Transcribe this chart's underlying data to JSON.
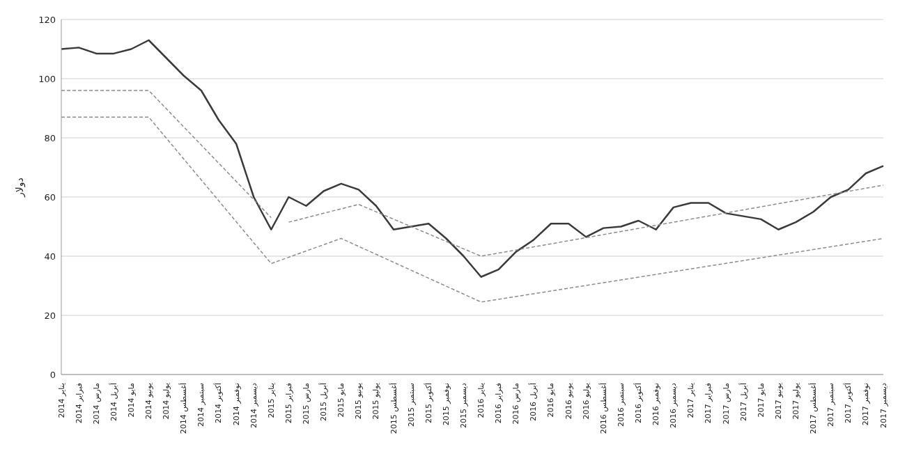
{
  "chart_data": {
    "type": "line",
    "ylabel": "دولار",
    "categories": [
      "يناير 2014",
      "فبراير 2014",
      "مارس 2014",
      "أبريل 2014",
      "مايو 2014",
      "يونيو 2014",
      "يوليو 2014",
      "أغسطس 2014",
      "سبتمبر 2014",
      "أكتوبر 2014",
      "نوفمبر 2014",
      "ديسمبر 2014",
      "يناير 2015",
      "فبراير 2015",
      "مارس 2015",
      "أبريل 2015",
      "مايو 2015",
      "يونيو 2015",
      "يوليو 2015",
      "أغسطس 2015",
      "سبتمبر 2015",
      "أكتوبر 2015",
      "نوفمبر 2015",
      "ديسمبر 2015",
      "يناير 2016",
      "فبراير 2016",
      "مارس 2016",
      "أبريل 2016",
      "مايو 2016",
      "يونيو 2016",
      "يوليو 2016",
      "أغسطس 2016",
      "سبتمبر 2016",
      "أكتوبر 2016",
      "نوفمبر 2016",
      "ديسمبر 2016",
      "يناير 2017",
      "فبراير 2017",
      "مارس 2017",
      "أبريل 2017",
      "مايو 2017",
      "يونيو 2017",
      "يوليو 2017",
      "أغسطس 2017",
      "سبتمبر 2017",
      "أكتوبر 2017",
      "نوفمبر 2017",
      "ديسمبر 2017"
    ],
    "series": [
      {
        "color": "#3a3a3a",
        "line_style": "solid",
        "values": [
          110,
          110.5,
          108.5,
          108.5,
          110,
          113,
          107,
          101,
          96,
          86,
          78,
          60,
          49,
          60,
          57,
          62,
          64.5,
          62.5,
          57,
          49,
          50,
          51,
          46,
          40,
          33,
          35.5,
          41.5,
          45.5,
          51,
          51,
          46.5,
          49.5,
          50,
          52,
          49,
          56.5,
          58,
          58,
          54.5,
          53.5,
          52.5,
          49,
          51.5,
          55,
          60,
          62.5,
          68,
          70.5
        ]
      },
      {
        "color": "#8c8c8c",
        "line_style": "dashed",
        "values": [
          96,
          null,
          null,
          null,
          null,
          96,
          null,
          null,
          null,
          null,
          null,
          null,
          53,
          null,
          null,
          null,
          null,
          null,
          null,
          null,
          null,
          null,
          null,
          null,
          null,
          null,
          null,
          null,
          null,
          null,
          null,
          null,
          null,
          null,
          null,
          null,
          null,
          null,
          null,
          null,
          null,
          null,
          null,
          null,
          null,
          null,
          null,
          null
        ]
      },
      {
        "color": "#8c8c8c",
        "line_style": "dashed",
        "values": [
          null,
          null,
          null,
          null,
          null,
          null,
          null,
          null,
          null,
          null,
          null,
          null,
          null,
          51.5,
          null,
          null,
          null,
          57.5,
          null,
          null,
          null,
          null,
          null,
          null,
          40,
          null,
          null,
          null,
          null,
          null,
          null,
          null,
          null,
          null,
          null,
          null,
          null,
          null,
          null,
          null,
          null,
          null,
          null,
          null,
          null,
          null,
          null,
          64
        ]
      },
      {
        "color": "#8c8c8c",
        "line_style": "dashed",
        "values": [
          87,
          null,
          null,
          null,
          null,
          87,
          null,
          null,
          null,
          null,
          null,
          null,
          37.5,
          null,
          null,
          null,
          46,
          null,
          null,
          null,
          null,
          null,
          null,
          null,
          24.5,
          null,
          null,
          null,
          null,
          null,
          null,
          null,
          null,
          null,
          null,
          null,
          null,
          null,
          null,
          null,
          null,
          null,
          null,
          null,
          null,
          null,
          null,
          46
        ]
      }
    ],
    "ylim": [
      0,
      120
    ],
    "yticks": [
      0,
      20,
      40,
      60,
      80,
      100,
      120
    ],
    "grid": "y",
    "marker": "none"
  }
}
